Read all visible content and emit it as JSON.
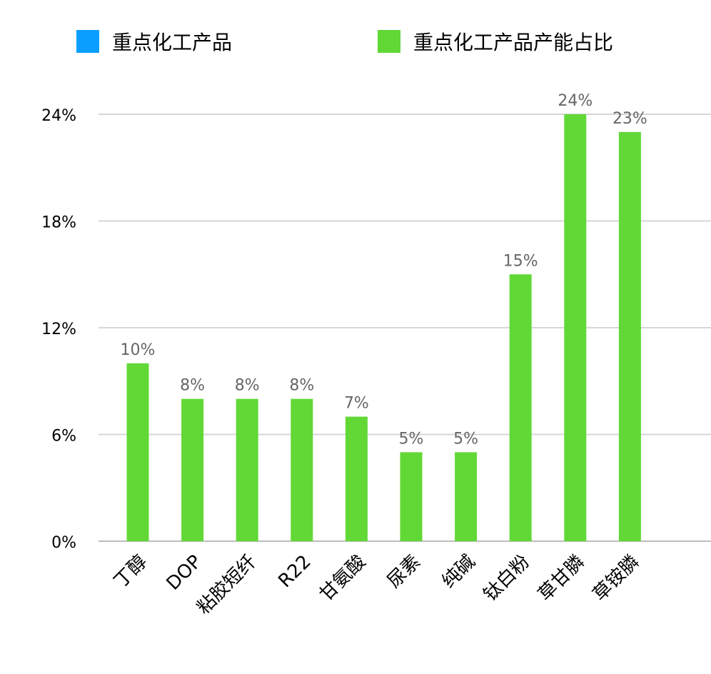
{
  "legend": {
    "items": [
      {
        "label": "重点化工产品",
        "color": "#0A9EFF"
      },
      {
        "label": "重点化工产品产能占比",
        "color": "#61D836"
      }
    ]
  },
  "colors": {
    "bar": "#61D836",
    "grid": "#D6D6D6",
    "axis": "#BDBDBD",
    "tick_label": "#000000",
    "value_label": "#666666"
  },
  "chart_data": {
    "type": "bar",
    "categories": [
      "丁醇",
      "DOP",
      "粘胶短纤",
      "R22",
      "甘氨酸",
      "尿素",
      "纯碱",
      "钛白粉",
      "草甘膦",
      "草铵膦"
    ],
    "series": [
      {
        "name": "重点化工产品产能占比",
        "values": [
          10,
          8,
          8,
          8,
          7,
          5,
          5,
          15,
          24,
          23
        ]
      }
    ],
    "data_labels": [
      "10%",
      "8%",
      "8%",
      "8%",
      "7%",
      "5%",
      "5%",
      "15%",
      "24%",
      "23%"
    ],
    "y_ticks": [
      0,
      6,
      12,
      18,
      24
    ],
    "y_tick_labels": [
      "0%",
      "6%",
      "12%",
      "18%",
      "24%"
    ],
    "ylim": [
      0,
      24
    ],
    "grid": true,
    "legend_position": "top",
    "title": "",
    "xlabel": "",
    "ylabel": ""
  }
}
